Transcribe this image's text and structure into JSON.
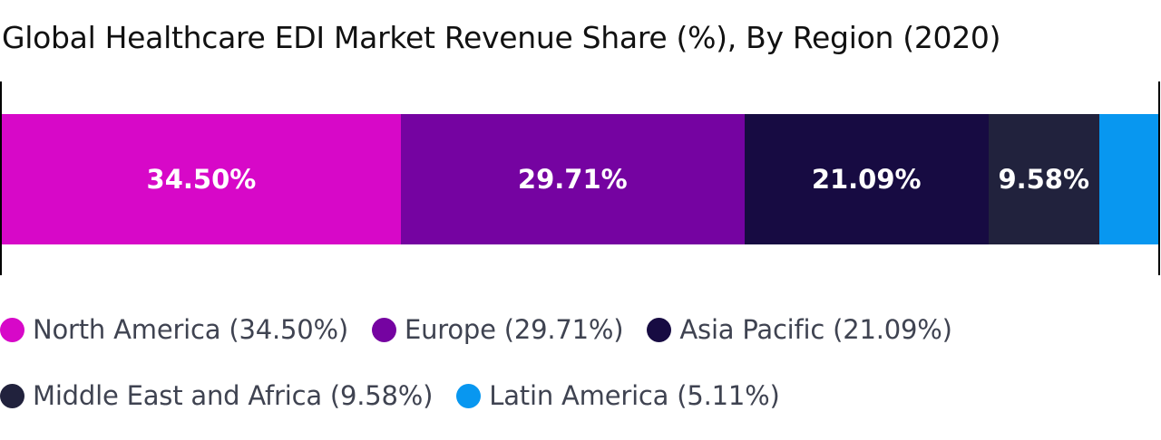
{
  "chart_data": {
    "type": "bar",
    "orientation": "horizontal-stacked",
    "title": "Global Healthcare EDI Market Revenue Share (%), By Region (2020)",
    "unit": "%",
    "legend_position": "bottom",
    "grid": false,
    "series": [
      {
        "name": "North America",
        "value": 34.5,
        "label": "34.50%",
        "legend": "North America (34.50%)",
        "color": "#d708c8"
      },
      {
        "name": "Europe",
        "value": 29.71,
        "label": "29.71%",
        "legend": "Europe (29.71%)",
        "color": "#7503a1"
      },
      {
        "name": "Asia Pacific",
        "value": 21.09,
        "label": "21.09%",
        "legend": "Asia Pacific (21.09%)",
        "color": "#170b42"
      },
      {
        "name": "Middle East and Africa",
        "value": 9.58,
        "label": "9.58%",
        "legend": "Middle East and Africa (9.58%)",
        "color": "#21223d"
      },
      {
        "name": "Latin America",
        "value": 5.11,
        "label": "",
        "legend": "Latin America (5.11%)",
        "color": "#0897f0"
      }
    ]
  }
}
